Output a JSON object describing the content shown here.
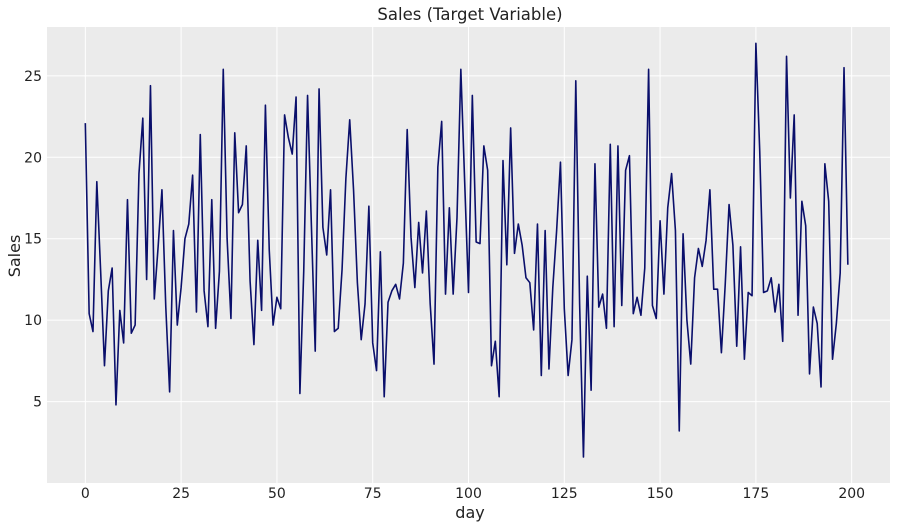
{
  "chart_data": {
    "type": "line",
    "title": "Sales (Target Variable)",
    "xlabel": "day",
    "ylabel": "Sales",
    "xlim": [
      -10,
      210
    ],
    "ylim": [
      0,
      28
    ],
    "x_ticks": [
      0,
      25,
      50,
      75,
      100,
      125,
      150,
      175,
      200
    ],
    "y_ticks": [
      5,
      10,
      15,
      20,
      25
    ],
    "grid": true,
    "legend": "none",
    "colors": {
      "background": "#ebebeb",
      "grid": "#ffffff",
      "line": "#0a0f6b"
    },
    "series": [
      {
        "x": [
          0,
          1,
          2,
          3,
          4,
          5,
          6,
          7,
          8,
          9,
          10,
          11,
          12,
          13,
          14,
          15,
          16,
          17,
          18,
          19,
          20,
          21,
          22,
          23,
          24,
          25,
          26,
          27,
          28,
          29,
          30,
          31,
          32,
          33,
          34,
          35,
          36,
          37,
          38,
          39,
          40,
          41,
          42,
          43,
          44,
          45,
          46,
          47,
          48,
          49,
          50,
          51,
          52,
          53,
          54,
          55,
          56,
          57,
          58,
          59,
          60,
          61,
          62,
          63,
          64,
          65,
          66,
          67,
          68,
          69,
          70,
          71,
          72,
          73,
          74,
          75,
          76,
          77,
          78,
          79,
          80,
          81,
          82,
          83,
          84,
          85,
          86,
          87,
          88,
          89,
          90,
          91,
          92,
          93,
          94,
          95,
          96,
          97,
          98,
          99,
          100,
          101,
          102,
          103,
          104,
          105,
          106,
          107,
          108,
          109,
          110,
          111,
          112,
          113,
          114,
          115,
          116,
          117,
          118,
          119,
          120,
          121,
          122,
          123,
          124,
          125,
          126,
          127,
          128,
          129,
          130,
          131,
          132,
          133,
          134,
          135,
          136,
          137,
          138,
          139,
          140,
          141,
          142,
          143,
          144,
          145,
          146,
          147,
          148,
          149,
          150,
          151,
          152,
          153,
          154,
          155,
          156,
          157,
          158,
          159,
          160,
          161,
          162,
          163,
          164,
          165,
          166,
          167,
          168,
          169,
          170,
          171,
          172,
          173,
          174,
          175,
          176,
          177,
          178,
          179,
          180,
          181,
          182,
          183,
          184,
          185,
          186,
          187,
          188,
          189,
          190,
          191,
          192,
          193,
          194,
          195,
          196,
          197,
          198,
          199
        ],
        "values": [
          22.1,
          10.4,
          9.3,
          18.5,
          13.0,
          7.2,
          11.8,
          13.2,
          4.8,
          10.6,
          8.6,
          17.4,
          9.2,
          9.7,
          19.0,
          22.4,
          12.5,
          24.4,
          11.3,
          14.5,
          18.0,
          10.8,
          5.6,
          15.5,
          9.7,
          12.0,
          15.0,
          15.9,
          18.9,
          10.5,
          21.4,
          11.8,
          9.6,
          17.4,
          9.5,
          13.0,
          25.4,
          15.0,
          10.1,
          21.5,
          16.6,
          17.1,
          20.7,
          12.4,
          8.5,
          14.9,
          10.6,
          23.2,
          14.3,
          9.7,
          11.4,
          10.7,
          22.6,
          21.2,
          20.2,
          23.7,
          5.5,
          13.0,
          23.8,
          15.8,
          8.1,
          24.2,
          15.7,
          14.0,
          18.0,
          9.3,
          9.5,
          13.1,
          18.7,
          22.3,
          18.0,
          12.3,
          8.8,
          11.0,
          17.0,
          8.6,
          6.9,
          14.2,
          5.3,
          11.1,
          11.8,
          12.2,
          11.3,
          13.5,
          21.7,
          15.1,
          12.0,
          16.0,
          12.9,
          16.7,
          11.0,
          7.3,
          19.4,
          22.2,
          11.6,
          16.9,
          11.6,
          16.3,
          25.4,
          18.5,
          11.7,
          23.8,
          14.8,
          14.7,
          20.7,
          19.2,
          7.2,
          8.7,
          5.3,
          19.8,
          13.4,
          21.8,
          14.1,
          15.9,
          14.6,
          12.6,
          12.3,
          9.4,
          15.9,
          6.6,
          15.5,
          7.0,
          12.0,
          15.5,
          19.7,
          10.7,
          6.6,
          8.8,
          24.7,
          11.0,
          1.6,
          12.7,
          5.7,
          19.6,
          10.8,
          11.6,
          9.5,
          20.8,
          9.6,
          20.7,
          10.9,
          19.2,
          20.1,
          10.4,
          11.4,
          10.3,
          13.2,
          25.4,
          10.9,
          10.1,
          16.1,
          11.6,
          16.9,
          19.0,
          15.5,
          3.2,
          15.3,
          10.0,
          7.3,
          12.6,
          14.4,
          13.3,
          14.9,
          18.0,
          11.9,
          11.9,
          8.0,
          12.2,
          17.1,
          14.6,
          8.4,
          14.5,
          7.6,
          11.7,
          11.5,
          27.0,
          20.4,
          11.7,
          11.8,
          12.6,
          10.5,
          12.2,
          8.7,
          26.2,
          17.5,
          22.6,
          10.3,
          17.3,
          15.8,
          6.7,
          10.8,
          9.8,
          5.9,
          19.6,
          17.3,
          7.6,
          9.8,
          12.9,
          25.5,
          13.4
        ]
      }
    ]
  }
}
